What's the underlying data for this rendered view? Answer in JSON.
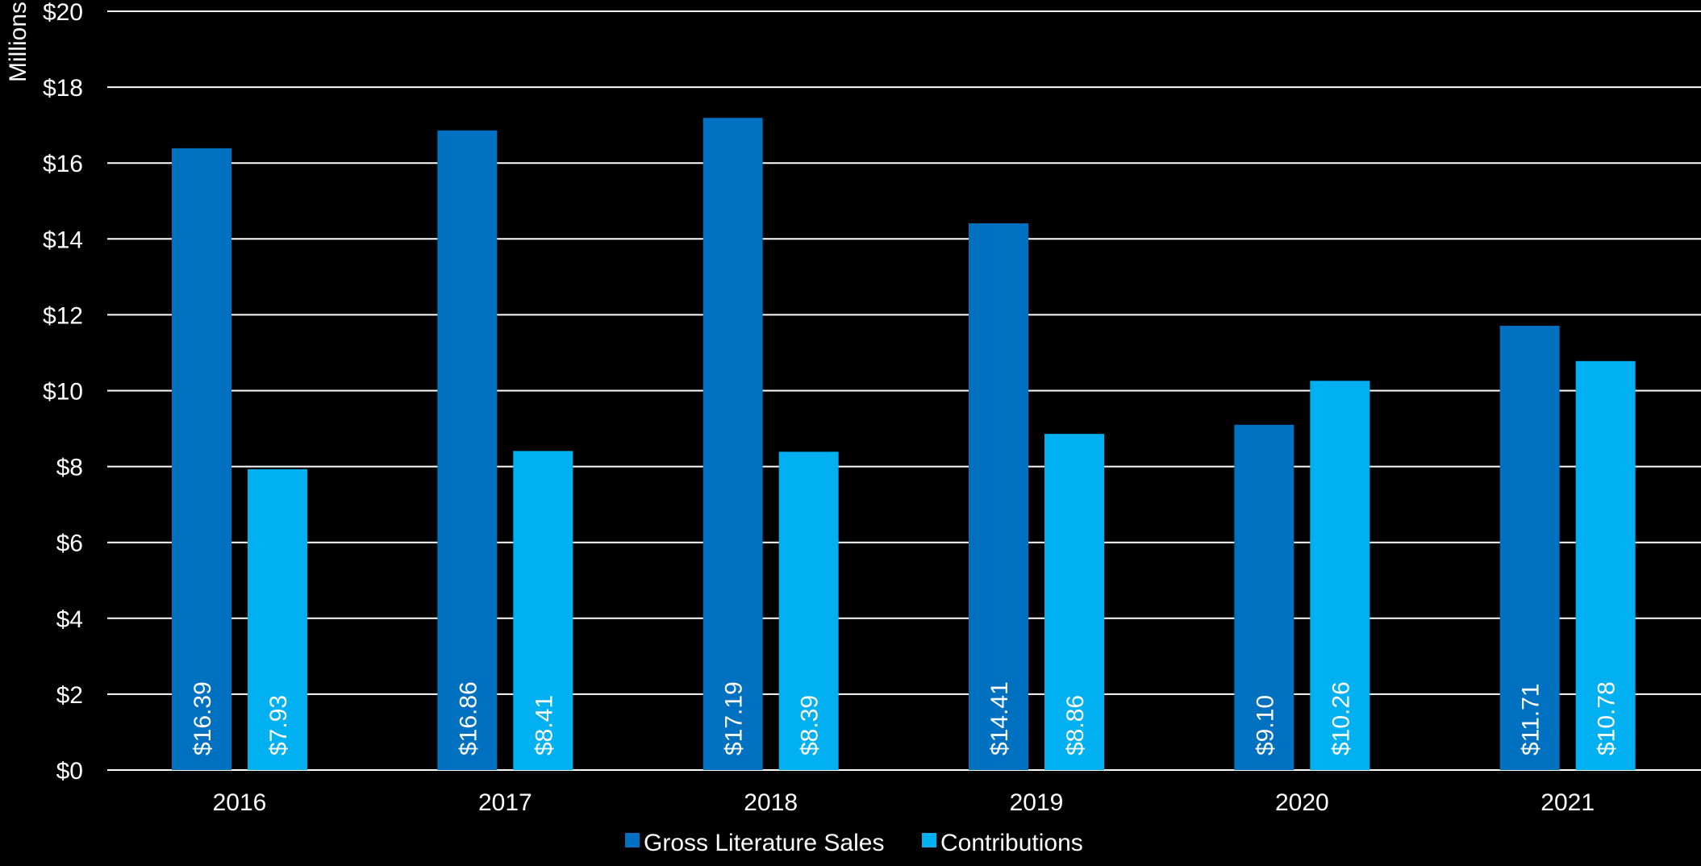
{
  "chart_data": {
    "type": "bar",
    "title": "",
    "xlabel": "",
    "ylabel": "Millions",
    "categories": [
      "2016",
      "2017",
      "2018",
      "2019",
      "2020",
      "2021"
    ],
    "series": [
      {
        "name": "Gross Literature Sales",
        "color": "#0070C0",
        "values": [
          16.39,
          16.86,
          17.19,
          14.41,
          9.1,
          11.71
        ],
        "labels": [
          "$16.39",
          "$16.86",
          "$17.19",
          "$14.41",
          "$9.10",
          "$11.71"
        ]
      },
      {
        "name": "Contributions",
        "color": "#00B0F0",
        "values": [
          7.93,
          8.41,
          8.39,
          8.86,
          10.26,
          10.78
        ],
        "labels": [
          "$7.93",
          "$8.41",
          "$8.39",
          "$8.86",
          "$10.26",
          "$10.78"
        ]
      }
    ],
    "ylim": [
      0,
      20
    ],
    "yticks": [
      0,
      2,
      4,
      6,
      8,
      10,
      12,
      14,
      16,
      18,
      20
    ],
    "ytick_labels": [
      "$0",
      "$2",
      "$4",
      "$6",
      "$8",
      "$10",
      "$12",
      "$14",
      "$16",
      "$18",
      "$20"
    ],
    "grid": true,
    "legend_position": "bottom-center"
  }
}
